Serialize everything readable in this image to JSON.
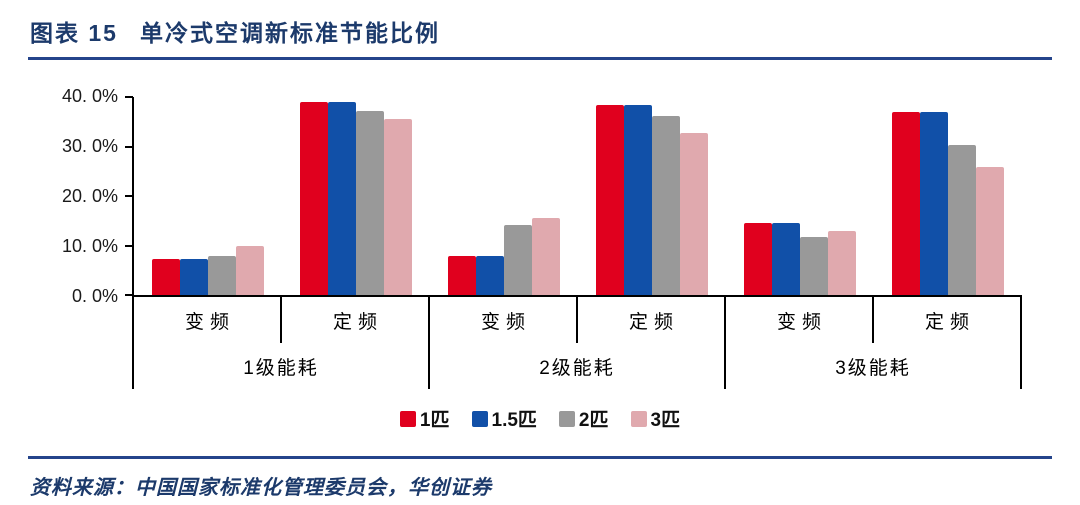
{
  "title": {
    "prefix": "图表 15",
    "text": "单冷式空调新标准节能比例"
  },
  "source": {
    "label": "资料来源：",
    "text": "中国国家标准化管理委员会，华创证券"
  },
  "colors": {
    "navy_text": "#1c3a6b",
    "rule": "#24448b",
    "axis": "#000000"
  },
  "chart_data": {
    "type": "bar",
    "title": "单冷式空调新标准节能比例",
    "xlabel": "",
    "ylabel": "",
    "ylim": [
      0,
      40
    ],
    "grid": false,
    "legend_position": "bottom",
    "y_ticks": [
      "40. 0%",
      "30. 0%",
      "20. 0%",
      "10. 0%",
      "0. 0%"
    ],
    "group_labels": [
      "1级能耗",
      "2级能耗",
      "3级能耗"
    ],
    "categories": [
      {
        "group": "1级能耗",
        "sub": "变频"
      },
      {
        "group": "1级能耗",
        "sub": "定频"
      },
      {
        "group": "2级能耗",
        "sub": "变频"
      },
      {
        "group": "2级能耗",
        "sub": "定频"
      },
      {
        "group": "3级能耗",
        "sub": "变频"
      },
      {
        "group": "3级能耗",
        "sub": "定频"
      }
    ],
    "series": [
      {
        "name": "1匹",
        "color": "#e0001e",
        "values": [
          7.2,
          39.0,
          7.9,
          38.3,
          14.5,
          37.0
        ]
      },
      {
        "name": "1.5匹",
        "color": "#1150a8",
        "values": [
          7.2,
          39.0,
          7.9,
          38.3,
          14.5,
          37.0
        ]
      },
      {
        "name": "2匹",
        "color": "#999999",
        "values": [
          7.8,
          37.2,
          14.2,
          36.2,
          11.8,
          30.3
        ]
      },
      {
        "name": "3匹",
        "color": "#e0a9ae",
        "values": [
          10.0,
          35.5,
          15.5,
          32.7,
          13.0,
          25.8
        ]
      }
    ]
  }
}
